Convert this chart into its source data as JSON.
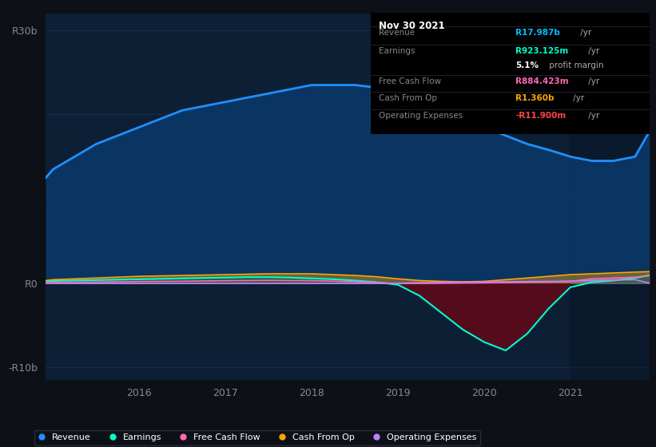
{
  "background_color": "#0d1117",
  "plot_bg_color": "#0d1f35",
  "x_years": [
    2014.917,
    2015.0,
    2015.25,
    2015.5,
    2015.75,
    2016.0,
    2016.25,
    2016.5,
    2016.75,
    2017.0,
    2017.25,
    2017.5,
    2017.75,
    2018.0,
    2018.25,
    2018.5,
    2018.75,
    2019.0,
    2019.25,
    2019.5,
    2019.75,
    2020.0,
    2020.25,
    2020.5,
    2020.75,
    2021.0,
    2021.25,
    2021.5,
    2021.75,
    2021.917
  ],
  "revenue": [
    12.5,
    13.5,
    15.0,
    16.5,
    17.5,
    18.5,
    19.5,
    20.5,
    21.0,
    21.5,
    22.0,
    22.5,
    23.0,
    23.5,
    23.5,
    23.5,
    23.2,
    23.0,
    22.0,
    20.5,
    19.5,
    18.5,
    17.5,
    16.5,
    15.8,
    15.0,
    14.5,
    14.5,
    15.0,
    17.987
  ],
  "earnings": [
    0.2,
    0.25,
    0.3,
    0.35,
    0.4,
    0.45,
    0.5,
    0.55,
    0.6,
    0.65,
    0.7,
    0.7,
    0.65,
    0.55,
    0.45,
    0.3,
    0.1,
    -0.2,
    -1.5,
    -3.5,
    -5.5,
    -7.0,
    -8.0,
    -6.0,
    -3.0,
    -0.5,
    0.1,
    0.3,
    0.6,
    0.923
  ],
  "free_cash_flow": [
    0.05,
    0.08,
    0.1,
    0.12,
    0.15,
    0.18,
    0.2,
    0.22,
    0.25,
    0.28,
    0.3,
    0.32,
    0.3,
    0.28,
    0.22,
    0.15,
    0.05,
    -0.05,
    -0.05,
    -0.03,
    0.0,
    0.02,
    0.05,
    0.1,
    0.15,
    0.2,
    0.5,
    0.6,
    0.7,
    0.884
  ],
  "cash_from_op": [
    0.3,
    0.4,
    0.5,
    0.6,
    0.7,
    0.8,
    0.85,
    0.9,
    0.95,
    1.0,
    1.05,
    1.1,
    1.1,
    1.1,
    1.0,
    0.9,
    0.75,
    0.5,
    0.3,
    0.2,
    0.15,
    0.2,
    0.4,
    0.6,
    0.8,
    1.0,
    1.1,
    1.2,
    1.3,
    1.36
  ],
  "op_expenses": [
    -0.05,
    -0.05,
    -0.05,
    -0.05,
    -0.05,
    -0.05,
    -0.05,
    -0.05,
    -0.05,
    -0.05,
    -0.05,
    -0.05,
    -0.05,
    -0.05,
    -0.05,
    -0.05,
    -0.05,
    -0.05,
    0.05,
    0.08,
    0.1,
    0.12,
    0.15,
    0.18,
    0.2,
    0.22,
    0.3,
    0.35,
    0.4,
    -0.0119
  ],
  "revenue_color": "#1e90ff",
  "earnings_color": "#00ffcc",
  "free_cash_flow_color": "#ff69b4",
  "cash_from_op_color": "#ffa500",
  "op_expenses_color": "#bf7fff",
  "revenue_fill_color": "#0a3a6b",
  "y_ticks": [
    30,
    0,
    -10
  ],
  "y_labels": [
    "R30b",
    "R0",
    "-R10b"
  ],
  "x_ticks": [
    2016,
    2017,
    2018,
    2019,
    2020,
    2021
  ],
  "legend": [
    {
      "label": "Revenue",
      "color": "#1e90ff"
    },
    {
      "label": "Earnings",
      "color": "#00ffcc"
    },
    {
      "label": "Free Cash Flow",
      "color": "#ff69b4"
    },
    {
      "label": "Cash From Op",
      "color": "#ffa500"
    },
    {
      "label": "Operating Expenses",
      "color": "#bf7fff"
    }
  ],
  "infobox": {
    "title": "Nov 30 2021",
    "rows": [
      {
        "label": "Revenue",
        "value": "R17.987b",
        "unit": " /yr",
        "value_color": "#00bfff"
      },
      {
        "label": "Earnings",
        "value": "R923.125m",
        "unit": " /yr",
        "value_color": "#00ffcc"
      },
      {
        "label": "",
        "value": "5.1%",
        "unit": " profit margin",
        "value_color": "#ffffff"
      },
      {
        "label": "Free Cash Flow",
        "value": "R884.423m",
        "unit": " /yr",
        "value_color": "#ff69b4"
      },
      {
        "label": "Cash From Op",
        "value": "R1.360b",
        "unit": " /yr",
        "value_color": "#ffa500"
      },
      {
        "label": "Operating Expenses",
        "value": "-R11.900m",
        "unit": " /yr",
        "value_color": "#ff4444"
      }
    ]
  }
}
